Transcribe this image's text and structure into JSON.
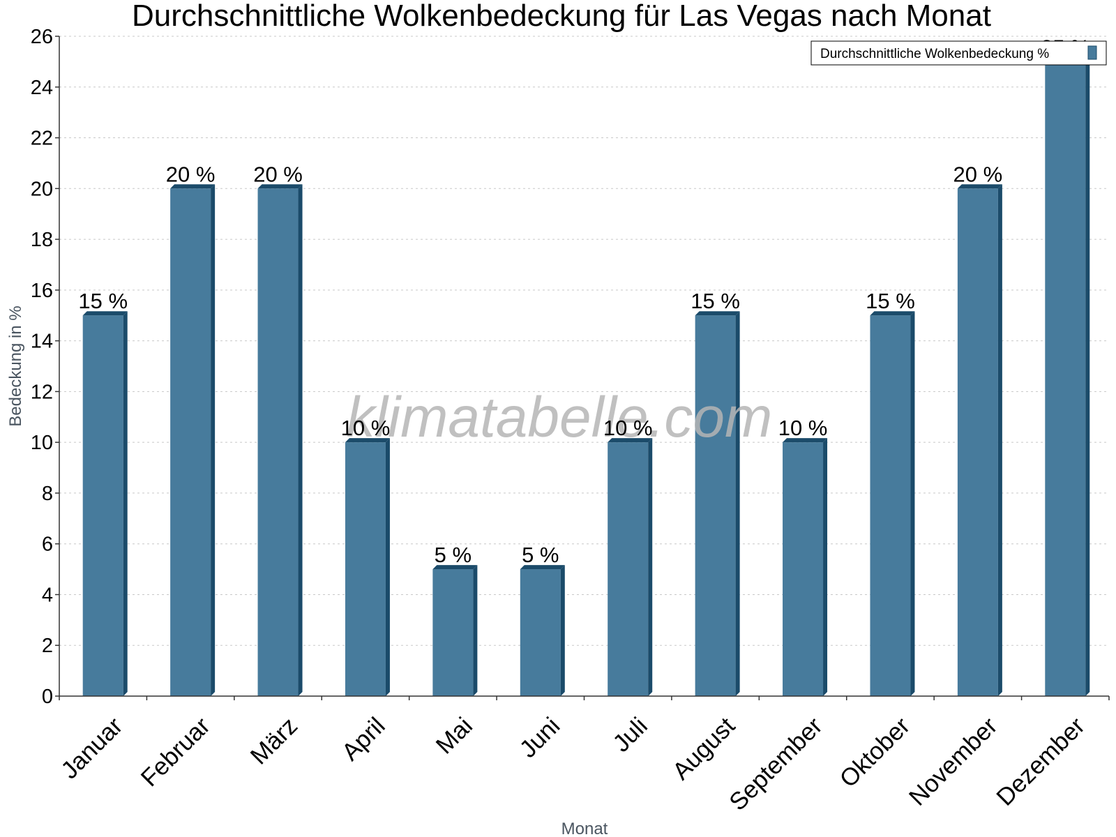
{
  "chart_data": {
    "type": "bar",
    "title": "Durchschnittliche Wolkenbedeckung für Las Vegas nach Monat",
    "xlabel": "Monat",
    "ylabel": "Bedeckung in %",
    "categories": [
      "Januar",
      "Februar",
      "März",
      "April",
      "Mai",
      "Juni",
      "Juli",
      "August",
      "September",
      "Oktober",
      "November",
      "Dezember"
    ],
    "series": [
      {
        "name": "Durchschnittliche Wolkenbedeckung %",
        "values": [
          15,
          20,
          20,
          10,
          5,
          5,
          10,
          15,
          10,
          15,
          20,
          25
        ],
        "color": "#477b9c",
        "side_color": "#1b4b6a"
      }
    ],
    "data_labels": [
      "15 %",
      "20 %",
      "20 %",
      "10 %",
      "5 %",
      "5 %",
      "10 %",
      "15 %",
      "10 %",
      "15 %",
      "20 %",
      "25 %"
    ],
    "ylim": [
      0,
      26
    ],
    "yticks": [
      0,
      2,
      4,
      6,
      8,
      10,
      12,
      14,
      16,
      18,
      20,
      22,
      24,
      26
    ],
    "grid": true,
    "legend": "top-right"
  },
  "watermark": "klimatabelle.com"
}
